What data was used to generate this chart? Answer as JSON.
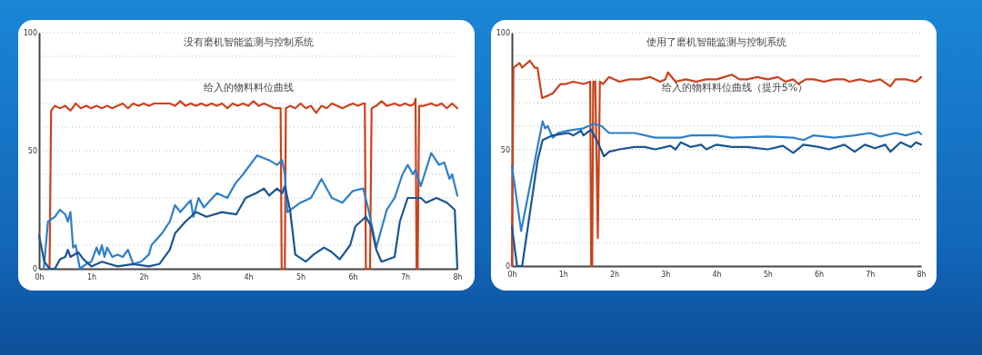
{
  "chart_data": [
    {
      "type": "line",
      "title": "没有磨机智能监测与控制系统",
      "annotations": [
        "给入的物料料位曲线"
      ],
      "xlim": [
        0,
        8
      ],
      "xticks": [
        {
          "value": 0,
          "label": "0h"
        },
        {
          "value": 1,
          "label": "1h"
        },
        {
          "value": 2,
          "label": "2h"
        },
        {
          "value": 3,
          "label": "3h"
        },
        {
          "value": 4,
          "label": "4h"
        },
        {
          "value": 5,
          "label": "5h"
        },
        {
          "value": 6,
          "label": "6h"
        },
        {
          "value": 7,
          "label": "7h"
        },
        {
          "value": 8,
          "label": "8h"
        }
      ],
      "ylim": [
        0,
        100
      ],
      "yticks": [
        0,
        {
          "value": 10,
          "label": null
        },
        {
          "value": 20,
          "label": null
        },
        {
          "value": 30,
          "label": null
        },
        {
          "value": 40,
          "label": null
        },
        50,
        {
          "value": 60,
          "label": null
        },
        {
          "value": 70,
          "label": null
        },
        {
          "value": 80,
          "label": null
        },
        {
          "value": 90,
          "label": null
        },
        100
      ],
      "grid": "y",
      "series": [
        {
          "color": "#c9431f",
          "x": [
            0.2,
            0.23,
            0.3,
            0.4,
            0.5,
            0.6,
            0.7,
            0.8,
            0.9,
            1.0,
            1.1,
            1.2,
            1.3,
            1.4,
            1.5,
            1.6,
            1.7,
            1.8,
            1.9,
            2.0,
            2.1,
            2.2,
            2.5,
            2.6,
            2.7,
            2.8,
            2.9,
            3.0,
            3.1,
            3.2,
            3.3,
            3.4,
            3.5,
            3.6,
            3.7,
            3.8,
            3.9,
            4.0,
            4.1,
            4.2,
            4.3,
            4.4,
            4.5,
            4.62,
            4.64,
            4.7,
            4.72,
            4.8,
            4.9,
            5.0,
            5.1,
            5.2,
            5.3,
            5.4,
            5.5,
            5.6,
            5.7,
            5.8,
            5.9,
            6.0,
            6.1,
            6.2,
            6.23,
            6.25,
            6.33,
            6.36,
            6.45,
            6.55,
            6.65,
            6.8,
            6.9,
            7.0,
            7.1,
            7.18,
            7.2,
            7.22,
            7.24,
            7.27,
            7.35,
            7.5,
            7.6,
            7.7,
            7.8,
            7.9,
            8.0
          ],
          "values": [
            0,
            67,
            69,
            68,
            69,
            67,
            70,
            68,
            69,
            68,
            69,
            68,
            69,
            68,
            69,
            70,
            68,
            70,
            69,
            70,
            69,
            70,
            70,
            69,
            71,
            69,
            70,
            69,
            70,
            69,
            70,
            69,
            70,
            68,
            70,
            69,
            70,
            69,
            71,
            69,
            70,
            69,
            68,
            68,
            0,
            0,
            68,
            69,
            68,
            70,
            68,
            69,
            66,
            69,
            68,
            70,
            69,
            68,
            69,
            70,
            69,
            70,
            70,
            0,
            0,
            68,
            69,
            71,
            69,
            70,
            69,
            70,
            69,
            70,
            72,
            0,
            0,
            69,
            69,
            70,
            69,
            70,
            68,
            70,
            68
          ]
        },
        {
          "color": "#2f7fc8",
          "x": [
            0.09,
            0.17,
            0.3,
            0.4,
            0.5,
            0.55,
            0.6,
            0.65,
            0.7,
            0.78,
            0.9,
            1.0,
            1.1,
            1.15,
            1.2,
            1.25,
            1.3,
            1.4,
            1.5,
            1.6,
            1.7,
            1.8,
            1.95,
            2.1,
            2.15,
            2.35,
            2.5,
            2.6,
            2.7,
            2.9,
            2.95,
            3.05,
            3.15,
            3.4,
            3.6,
            3.75,
            3.9,
            4.17,
            4.4,
            4.55,
            4.65,
            4.7,
            4.75,
            5.0,
            5.2,
            5.4,
            5.6,
            5.8,
            6.0,
            6.2,
            6.3,
            6.45,
            6.65,
            6.8,
            6.95,
            7.05,
            7.15,
            7.2,
            7.3,
            7.5,
            7.65,
            7.75,
            7.85,
            7.9,
            8.0
          ],
          "values": [
            0,
            20,
            22,
            25,
            23,
            20,
            24,
            9,
            10,
            0,
            2,
            3,
            9,
            6,
            10,
            5,
            9,
            5,
            6,
            5,
            8,
            2,
            3,
            6,
            10,
            15,
            20,
            27,
            24,
            29,
            22,
            30,
            26,
            32,
            30,
            36,
            40,
            48,
            46,
            44,
            46,
            40,
            24,
            28,
            30,
            38,
            30,
            28,
            33,
            34,
            25,
            9,
            25,
            30,
            40,
            44,
            40,
            42,
            35,
            49,
            44,
            45,
            38,
            40,
            31
          ]
        },
        {
          "color": "#1a5593",
          "x": [
            0,
            0.1,
            0.2,
            0.3,
            0.4,
            0.5,
            0.55,
            0.6,
            0.75,
            0.85,
            1.0,
            1.2,
            1.5,
            1.8,
            2.1,
            2.3,
            2.5,
            2.6,
            2.8,
            3.0,
            3.2,
            3.5,
            3.77,
            3.95,
            4.15,
            4.3,
            4.4,
            4.55,
            4.65,
            4.7,
            4.8,
            4.9,
            5.1,
            5.25,
            5.45,
            5.6,
            5.75,
            5.95,
            6.05,
            6.25,
            6.35,
            6.45,
            6.55,
            6.8,
            6.9,
            7.05,
            7.3,
            7.4,
            7.6,
            7.8,
            7.95,
            8.0
          ],
          "values": [
            14,
            3,
            0,
            0,
            4,
            5,
            8,
            5,
            7,
            4,
            1,
            3,
            1,
            2,
            1,
            2,
            8,
            15,
            20,
            24,
            22,
            24,
            23,
            30,
            32,
            34,
            31,
            34,
            32,
            35,
            25,
            6,
            3,
            6,
            9,
            7,
            4,
            10,
            18,
            22,
            18,
            8,
            3,
            5,
            20,
            30,
            30,
            28,
            30,
            28,
            25,
            0
          ]
        }
      ]
    },
    {
      "type": "line",
      "title": "使用了磨机智能监测与控制系统",
      "annotations": [
        "给入的物料料位曲线（提升5%）"
      ],
      "xlim": [
        0,
        8
      ],
      "xticks": [
        {
          "value": 0,
          "label": "0h"
        },
        {
          "value": 1,
          "label": "1h"
        },
        {
          "value": 2,
          "label": "2h"
        },
        {
          "value": 3,
          "label": "3h"
        },
        {
          "value": 4,
          "label": "4h"
        },
        {
          "value": 5,
          "label": "5h"
        },
        {
          "value": 6,
          "label": "6h"
        },
        {
          "value": 7,
          "label": "7h"
        },
        {
          "value": 8,
          "label": "8h"
        }
      ],
      "ylim": [
        0,
        100
      ],
      "yticks": [
        0,
        {
          "value": 10,
          "label": null
        },
        {
          "value": 20,
          "label": null
        },
        {
          "value": 30,
          "label": null
        },
        {
          "value": 40,
          "label": null
        },
        50,
        {
          "value": 60,
          "label": null
        },
        {
          "value": 70,
          "label": null
        },
        {
          "value": 80,
          "label": null
        },
        {
          "value": 90,
          "label": null
        },
        100
      ],
      "grid": "y",
      "series": [
        {
          "color": "#c9431f",
          "x": [
            0,
            0.03,
            0.15,
            0.2,
            0.35,
            0.45,
            0.5,
            0.59,
            0.7,
            0.8,
            0.95,
            1.05,
            1.2,
            1.4,
            1.53,
            1.55,
            1.57,
            1.59,
            1.63,
            1.68,
            1.72,
            1.78,
            1.9,
            2.1,
            2.3,
            2.5,
            2.7,
            2.9,
            3.0,
            3.05,
            3.2,
            3.4,
            3.6,
            3.8,
            4.0,
            4.15,
            4.3,
            4.45,
            4.6,
            4.8,
            5.0,
            5.2,
            5.35,
            5.5,
            5.6,
            5.75,
            5.9,
            6.1,
            6.3,
            6.5,
            6.6,
            6.8,
            7.0,
            7.2,
            7.4,
            7.5,
            7.7,
            7.9,
            8.0
          ],
          "values": [
            0,
            85,
            87,
            85,
            88,
            85,
            85,
            72,
            73,
            74,
            78,
            78,
            79,
            78,
            79,
            0,
            0,
            79,
            79,
            12,
            79,
            78,
            81,
            79,
            80,
            80,
            81,
            79,
            80,
            83,
            79,
            80,
            79,
            80,
            80,
            81,
            82,
            80,
            80,
            81,
            80,
            81,
            79,
            80,
            78,
            80,
            80,
            79,
            80,
            80,
            79,
            80,
            79,
            80,
            77,
            80,
            80,
            79,
            81
          ]
        },
        {
          "color": "#2f7fc8",
          "x": [
            0,
            0.18,
            0.6,
            0.65,
            0.7,
            0.8,
            0.9,
            1.1,
            1.4,
            1.6,
            1.75,
            1.9,
            2.4,
            2.8,
            3.3,
            3.5,
            4.0,
            4.3,
            5.0,
            5.5,
            5.7,
            5.9,
            6.3,
            6.7,
            7.0,
            7.2,
            7.5,
            7.7,
            7.95,
            8.0
          ],
          "values": [
            43,
            15,
            62,
            59,
            60,
            55,
            57,
            58,
            59,
            61,
            60,
            57,
            57,
            55,
            55,
            56,
            56,
            55,
            55.5,
            55,
            54,
            56,
            55,
            56,
            57,
            55.5,
            57,
            56,
            57.5,
            56.5
          ]
        },
        {
          "color": "#1a5593",
          "x": [
            0,
            0.1,
            0.2,
            0.5,
            0.6,
            0.8,
            1.1,
            1.2,
            1.35,
            1.4,
            1.55,
            1.7,
            1.8,
            1.9,
            2.1,
            2.4,
            2.6,
            2.8,
            3.1,
            3.2,
            3.3,
            3.5,
            3.7,
            3.8,
            4.0,
            4.3,
            4.6,
            5.0,
            5.3,
            5.5,
            5.7,
            6.0,
            6.2,
            6.5,
            6.7,
            6.9,
            7.1,
            7.3,
            7.4,
            7.6,
            7.8,
            7.9,
            8.0
          ],
          "values": [
            17,
            0,
            0,
            45,
            54,
            56,
            57,
            56,
            58,
            56,
            58.5,
            52,
            47,
            49,
            50,
            51,
            51,
            50,
            51.5,
            50,
            53,
            51,
            52,
            50,
            52,
            51,
            51,
            50,
            51.5,
            48.5,
            52,
            51,
            50,
            52,
            49,
            52,
            50.5,
            52,
            49,
            53,
            51,
            53,
            52
          ]
        }
      ]
    }
  ]
}
